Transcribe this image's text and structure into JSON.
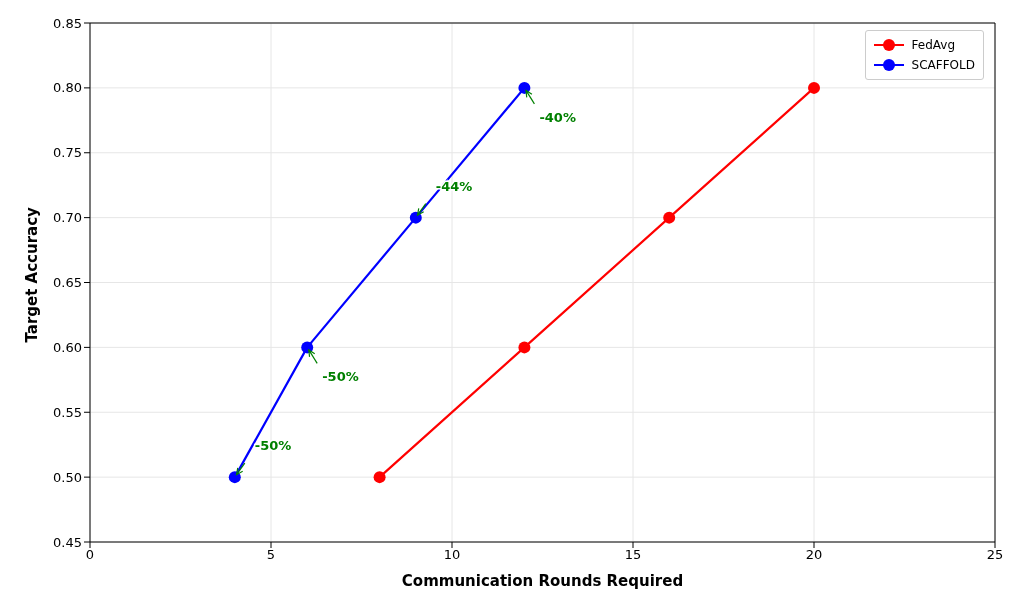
{
  "chart_data": {
    "type": "line",
    "xlabel": "Communication Rounds Required",
    "ylabel": "Target Accuracy",
    "series": [
      {
        "name": "FedAvg",
        "color": "#ff0000",
        "x": [
          8,
          12,
          16,
          20
        ],
        "values": [
          0.5,
          0.6,
          0.7,
          0.8
        ]
      },
      {
        "name": "SCAFFOLD",
        "color": "#0000ff",
        "x": [
          4,
          6,
          9,
          12
        ],
        "values": [
          0.5,
          0.6,
          0.7,
          0.8
        ]
      }
    ],
    "annotations": [
      {
        "text": "-50%",
        "x": 4,
        "y": 0.5
      },
      {
        "text": "-50%",
        "x": 6,
        "y": 0.6
      },
      {
        "text": "-44%",
        "x": 9,
        "y": 0.7
      },
      {
        "text": "-40%",
        "x": 12,
        "y": 0.8
      }
    ],
    "xlim": [
      0,
      25
    ],
    "xticks": [
      0,
      5,
      10,
      15,
      20,
      25
    ],
    "ylim": [
      0.45,
      0.85
    ],
    "yticks": [
      0.45,
      {
        "value": 0.5,
        "label": "0.50"
      },
      0.55,
      {
        "value": 0.6,
        "label": "0.60"
      },
      0.65,
      {
        "value": 0.7,
        "label": "0.70"
      },
      0.75,
      {
        "value": 0.8,
        "label": "0.80"
      },
      0.85
    ],
    "grid": true,
    "legend": "top right",
    "marker": "circle",
    "line_style": "solid"
  }
}
